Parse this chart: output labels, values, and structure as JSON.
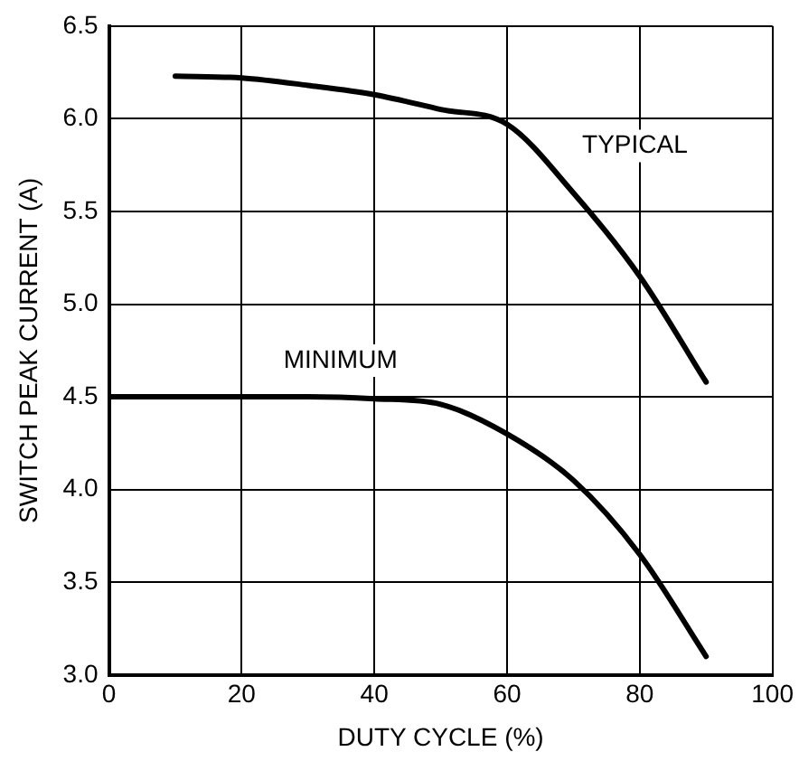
{
  "chart_data": {
    "type": "line",
    "xlabel": "DUTY CYCLE (%)",
    "ylabel": "SWITCH PEAK CURRENT (A)",
    "series": [
      {
        "name": "TYPICAL",
        "color": "#000000",
        "x": [
          10,
          20,
          30,
          40,
          50,
          60,
          70,
          80,
          90
        ],
        "values": [
          6.23,
          6.22,
          6.18,
          6.13,
          6.05,
          5.97,
          5.6,
          5.15,
          4.58
        ]
      },
      {
        "name": "MINIMUM",
        "color": "#000000",
        "x": [
          0,
          10,
          20,
          30,
          40,
          50,
          60,
          70,
          80,
          90
        ],
        "values": [
          4.5,
          4.5,
          4.5,
          4.5,
          4.49,
          4.46,
          4.3,
          4.05,
          3.65,
          3.1
        ]
      }
    ],
    "xlim": [
      0,
      100
    ],
    "xticks": [
      0,
      20,
      40,
      60,
      80,
      100
    ],
    "ylim": [
      3,
      6.5
    ],
    "yticks": [
      {
        "value": 3,
        "label": "3.0"
      },
      3.5,
      {
        "value": 4,
        "label": "4.0"
      },
      4.5,
      {
        "value": 5,
        "label": "5.0"
      },
      5.5,
      {
        "value": 6,
        "label": "6.0"
      },
      6.5
    ],
    "grid": true,
    "legend": false,
    "marker": "none",
    "line_style": "solid"
  }
}
